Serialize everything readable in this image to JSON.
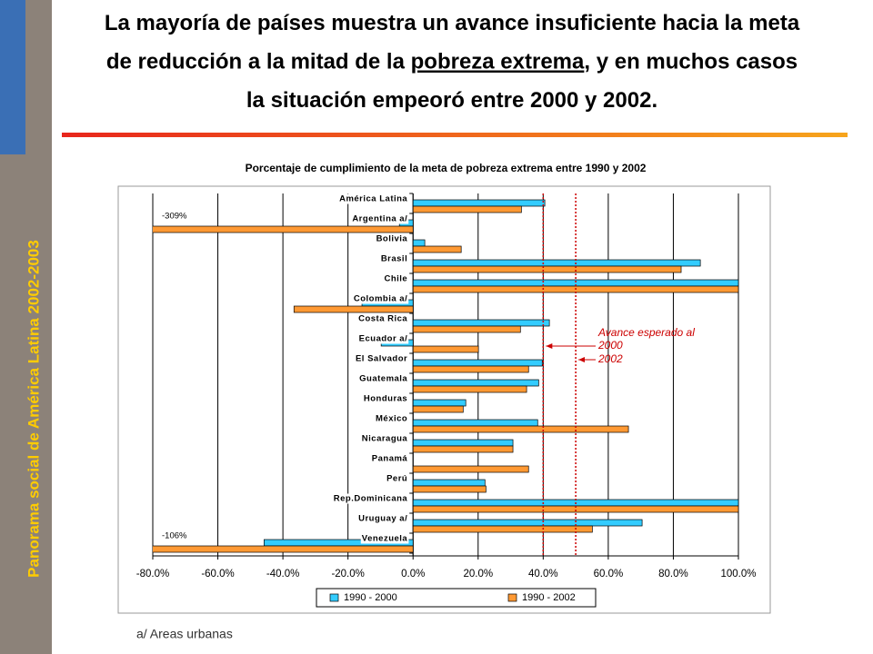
{
  "sidebar": "Panorama social de América Latina 2002-2003",
  "title_lines": [
    [
      "La mayoría de países muestra un avance insuficiente hacia la meta"
    ],
    [
      "de reducción a la mitad de la ",
      "pobreza extrema",
      ", y en muchos casos"
    ],
    [
      "la situación empeoró entre 2000 y 2002."
    ]
  ],
  "footnote": "a/ Areas urbanas",
  "chart_data": {
    "type": "hbar",
    "title": "Porcentaje de cumplimiento de la meta de pobreza extrema entre 1990 y 2002",
    "categories": [
      "América Latina",
      "Argentina a/",
      "Bolivia",
      "Brasil",
      "Chile",
      "Colombia a/",
      "Costa Rica",
      "Ecuador a/",
      "El Salvador",
      "Guatemala",
      "Honduras",
      "México",
      "Nicaragua",
      "Panamá",
      "Perú",
      "Rep.Dominicana",
      "Uruguay a/",
      "Venezuela"
    ],
    "series": [
      {
        "name": "1990 - 2000",
        "color": "#33ccff",
        "values": [
          40.5,
          -4.2,
          3.6,
          88.3,
          100,
          -15.7,
          41.9,
          -9.8,
          39.7,
          38.6,
          16.2,
          38.3,
          30.7,
          null,
          22.1,
          100,
          70.4,
          -45.8
        ]
      },
      {
        "name": "1990 - 2002",
        "color": "#ff9933",
        "values": [
          33.3,
          -309,
          14.8,
          82.4,
          100,
          -36.6,
          33,
          20.1,
          35.5,
          34.9,
          15.4,
          66.2,
          30.7,
          35.5,
          22.4,
          100,
          55.1,
          -106
        ],
        "value_labels": [
          null,
          "-309%",
          null,
          null,
          null,
          null,
          null,
          null,
          null,
          null,
          null,
          null,
          null,
          null,
          null,
          null,
          null,
          "-106%"
        ]
      }
    ],
    "xlim": [
      -80,
      100
    ],
    "xticks": [
      {
        "value": -80,
        "label": "-80.0%"
      },
      {
        "value": -60,
        "label": "-60.0%"
      },
      {
        "value": -40,
        "label": "-40.0%"
      },
      {
        "value": -20,
        "label": "-20.0%"
      },
      {
        "value": 0,
        "label": "0.0%"
      },
      {
        "value": 20,
        "label": "20.0%"
      },
      {
        "value": 40,
        "label": "40.0%"
      },
      {
        "value": 60,
        "label": "60.0%"
      },
      {
        "value": 80,
        "label": "80.0%"
      },
      {
        "value": 100,
        "label": "100.0%"
      }
    ],
    "grid": true,
    "reference_lines": [
      {
        "value": 40,
        "label": "2000",
        "color": "#cc0000"
      },
      {
        "value": 50,
        "label": "2002",
        "color": "#cc0000"
      }
    ],
    "annotation": "Avance esperado al",
    "legend": "bottom"
  }
}
